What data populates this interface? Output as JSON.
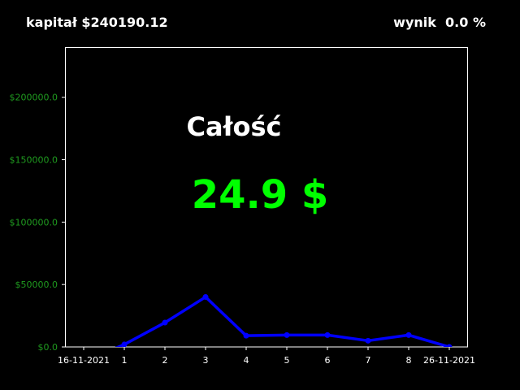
{
  "header": {
    "capital_label": "kapitał",
    "capital_value": "$240190.12",
    "score_label": "wynik",
    "score_value": "0.0 %"
  },
  "overlay": {
    "title": "Całość",
    "value": "24.9 $",
    "value_color": "#00ff00",
    "title_color": "#ffffff"
  },
  "colors": {
    "background": "#000000",
    "axes": "#ffffff",
    "ytick_text": "#1f9a1f",
    "xtick_text": "#ffffff",
    "line": "#0000ff"
  },
  "chart_data": {
    "type": "line",
    "title": "",
    "xlabel": "",
    "ylabel": "",
    "grid": false,
    "ylim": [
      0,
      240190.12
    ],
    "x": [
      "16-11-2021",
      "1",
      "2",
      "3",
      "4",
      "5",
      "6",
      "7",
      "8",
      "26-11-2021"
    ],
    "xtick_labels": [
      "16-11-2021",
      "1",
      "2",
      "3",
      "4",
      "5",
      "6",
      "7",
      "8",
      "26-11-2021"
    ],
    "yticks": [
      0,
      50000,
      100000,
      150000,
      200000
    ],
    "ytick_labels": [
      "$0.0",
      "$50000.0",
      "$100000.0",
      "$150000.0",
      "$200000.0"
    ],
    "series": [
      {
        "values": [
          -12000,
          2000,
          19500,
          40000,
          9000,
          9500,
          9500,
          5000,
          9500,
          0
        ]
      }
    ]
  }
}
